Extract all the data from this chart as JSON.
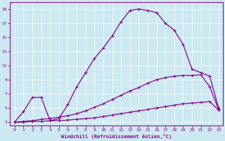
{
  "xlabel": "Windchill (Refroidissement éolien,°C)",
  "bg_color": "#cce8f0",
  "line_color": "#880088",
  "grid_color": "#aaccdd",
  "xlim": [
    -0.5,
    23.5
  ],
  "ylim": [
    2.5,
    20
  ],
  "yticks": [
    3,
    5,
    7,
    9,
    11,
    13,
    15,
    17,
    19
  ],
  "xticks": [
    0,
    1,
    2,
    3,
    4,
    5,
    6,
    7,
    8,
    9,
    10,
    11,
    12,
    13,
    14,
    15,
    16,
    17,
    18,
    19,
    20,
    21,
    22,
    23
  ],
  "line1_x": [
    0,
    1,
    2,
    3,
    4,
    5,
    6,
    7,
    8,
    9,
    10,
    11,
    12,
    13,
    14,
    15,
    16,
    17,
    18,
    19,
    20,
    21,
    22,
    23
  ],
  "line1_y": [
    3,
    4.5,
    6.5,
    6.5,
    3.2,
    3.5,
    5.5,
    8.0,
    10.0,
    12.0,
    13.5,
    15.2,
    17.2,
    18.8,
    19.0,
    18.8,
    18.5,
    17.0,
    16.0,
    14.0,
    10.5,
    10.0,
    9.5,
    5.0
  ],
  "line2_x": [
    0,
    1,
    2,
    3,
    4,
    5,
    6,
    7,
    8,
    9,
    10,
    11,
    12,
    13,
    14,
    15,
    16,
    17,
    18,
    19,
    20,
    21,
    22,
    23
  ],
  "line2_y": [
    3.0,
    3.1,
    3.2,
    3.4,
    3.5,
    3.7,
    3.9,
    4.2,
    4.6,
    5.1,
    5.6,
    6.2,
    6.8,
    7.4,
    7.9,
    8.5,
    9.0,
    9.3,
    9.5,
    9.6,
    9.6,
    9.7,
    8.0,
    4.8
  ],
  "line3_x": [
    0,
    1,
    2,
    3,
    4,
    5,
    6,
    7,
    8,
    9,
    10,
    11,
    12,
    13,
    14,
    15,
    16,
    17,
    18,
    19,
    20,
    21,
    22,
    23
  ],
  "line3_y": [
    3.0,
    3.0,
    3.1,
    3.1,
    3.2,
    3.2,
    3.3,
    3.4,
    3.5,
    3.6,
    3.8,
    4.0,
    4.2,
    4.4,
    4.6,
    4.8,
    5.0,
    5.2,
    5.4,
    5.6,
    5.7,
    5.8,
    5.9,
    4.7
  ]
}
